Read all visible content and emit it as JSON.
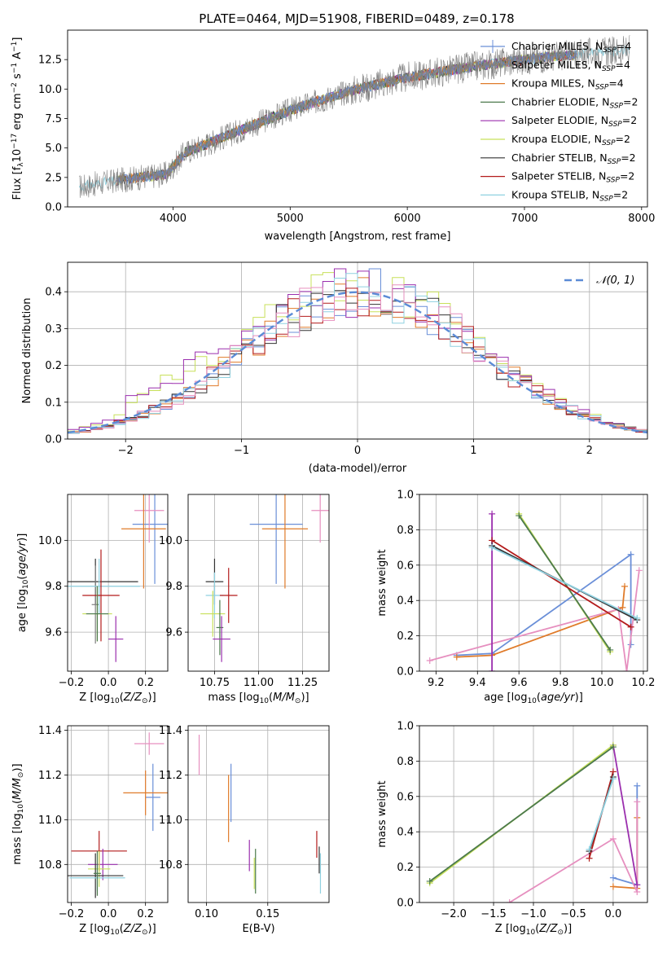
{
  "page_title": "PLATE=0464, MJD=51908, FIBERID=0489, z=0.178",
  "colors": {
    "chabrier_miles": "#6a8fd8",
    "salpeter_miles": "#7f7f7f",
    "kroupa_miles": "#e07b2a",
    "chabrier_elodie": "#4c7a4c",
    "salpeter_elodie": "#9b2fae",
    "kroupa_elodie": "#c8e05a",
    "chabrier_stelib": "#333333",
    "salpeter_stelib": "#b31b1b",
    "kroupa_stelib": "#8fd1e0",
    "pink": "#e68fbf",
    "gauss": "#5b8bd6"
  },
  "chart_data": [
    {
      "type": "line",
      "title": "PLATE=0464, MJD=51908, FIBERID=0489, z=0.178",
      "xlabel": "wavelength [Angstrom, rest frame]",
      "ylabel": "Flux [f_λ 10^-17 erg cm^-2 s^-1 A^-1]",
      "xlim": [
        3100,
        8050
      ],
      "ylim": [
        0,
        15
      ],
      "xticks": [
        "4000",
        "5000",
        "6000",
        "7000",
        "8000"
      ],
      "yticks": [
        "0.0",
        "2.5",
        "5.0",
        "7.5",
        "10.0",
        "12.5"
      ],
      "legend": [
        {
          "label": "Chabrier MILES, N",
          "sub": "SSP",
          "suffix": "=4",
          "key": "chabrier_miles"
        },
        {
          "label": "Salpeter MILES, N",
          "sub": "SSP",
          "suffix": "=4",
          "key": "salpeter_miles"
        },
        {
          "label": "Kroupa MILES, N",
          "sub": "SSP",
          "suffix": "=4",
          "key": "kroupa_miles"
        },
        {
          "label": "Chabrier ELODIE, N",
          "sub": "SSP",
          "suffix": "=2",
          "key": "chabrier_elodie"
        },
        {
          "label": "Salpeter ELODIE, N",
          "sub": "SSP",
          "suffix": "=2",
          "key": "salpeter_elodie"
        },
        {
          "label": "Kroupa ELODIE, N",
          "sub": "SSP",
          "suffix": "=2",
          "key": "kroupa_elodie"
        },
        {
          "label": "Chabrier STELIB, N",
          "sub": "SSP",
          "suffix": "=2",
          "key": "chabrier_stelib"
        },
        {
          "label": "Salpeter STELIB, N",
          "sub": "SSP",
          "suffix": "=2",
          "key": "salpeter_stelib"
        },
        {
          "label": "Kroupa STELIB, N",
          "sub": "SSP",
          "suffix": "=2",
          "key": "kroupa_stelib"
        }
      ],
      "continuum": [
        [
          3200,
          1.7
        ],
        [
          3500,
          2.2
        ],
        [
          3800,
          2.6
        ],
        [
          3950,
          2.8
        ],
        [
          4100,
          4.6
        ],
        [
          4500,
          6.2
        ],
        [
          5000,
          8.2
        ],
        [
          5500,
          9.8
        ],
        [
          6000,
          11.0
        ],
        [
          6500,
          11.8
        ],
        [
          7000,
          12.5
        ],
        [
          7500,
          13.0
        ],
        [
          7900,
          13.3
        ]
      ],
      "models_xlim": [
        3520,
        7450
      ]
    },
    {
      "type": "step",
      "xlabel": "(data-model)/error",
      "ylabel": "Normed distribution",
      "xlim": [
        -2.5,
        2.5
      ],
      "ylim": [
        0,
        0.48
      ],
      "xticks": [
        "−2",
        "−1",
        "0",
        "1",
        "2"
      ],
      "yticks": [
        "0.0",
        "0.1",
        "0.2",
        "0.3",
        "0.4"
      ],
      "legend": "𝒩(0, 1)",
      "reference_curve": "N(0,1) density"
    },
    {
      "type": "errorbar",
      "xlabel": "Z [log10(Z/Z⊙)]",
      "ylabel": "age [log10(age/yr)]",
      "xlim": [
        -0.22,
        0.32
      ],
      "ylim": [
        9.43,
        10.2
      ],
      "xticks": [
        "−0.2",
        "0.0",
        "0.2"
      ],
      "yticks": [
        "9.6",
        "9.8",
        "10.0"
      ],
      "points": [
        {
          "x": 0.25,
          "y": 10.07,
          "xerr": 0.12,
          "yerr": 0.26,
          "key": "chabrier_miles"
        },
        {
          "x": 0.22,
          "y": 10.13,
          "xerr": 0.08,
          "yerr": 0.14,
          "key": "pink"
        },
        {
          "x": 0.19,
          "y": 10.05,
          "xerr": 0.12,
          "yerr": 0.26,
          "key": "kroupa_miles"
        },
        {
          "x": -0.07,
          "y": 9.82,
          "xerr": 0.23,
          "yerr": 0.1,
          "key": "chabrier_stelib"
        },
        {
          "x": -0.07,
          "y": 9.72,
          "xerr": 0.02,
          "yerr": 0.17,
          "key": "salpeter_miles"
        },
        {
          "x": -0.05,
          "y": 9.8,
          "xerr": 0.22,
          "yerr": 0.12,
          "key": "kroupa_stelib"
        },
        {
          "x": -0.04,
          "y": 9.76,
          "xerr": 0.1,
          "yerr": 0.2,
          "key": "salpeter_stelib"
        },
        {
          "x": -0.06,
          "y": 9.68,
          "xerr": 0.08,
          "yerr": 0.12,
          "key": "kroupa_elodie"
        },
        {
          "x": -0.06,
          "y": 9.68,
          "xerr": 0.06,
          "yerr": 0.12,
          "key": "chabrier_elodie"
        },
        {
          "x": 0.04,
          "y": 9.57,
          "xerr": 0.04,
          "yerr": 0.1,
          "key": "salpeter_elodie"
        }
      ]
    },
    {
      "type": "errorbar",
      "xlabel": "mass [log10(M/M⊙)]",
      "ylabel": "",
      "xlim": [
        10.6,
        11.4
      ],
      "ylim": [
        9.43,
        10.2
      ],
      "xticks": [
        "10.75",
        "11.00",
        "11.25"
      ],
      "yticks": [
        "9.6",
        "9.8",
        "10.0"
      ],
      "points": [
        {
          "x": 11.1,
          "y": 10.07,
          "xerr": 0.15,
          "yerr": 0.26,
          "key": "chabrier_miles"
        },
        {
          "x": 11.35,
          "y": 10.13,
          "xerr": 0.05,
          "yerr": 0.14,
          "key": "pink"
        },
        {
          "x": 11.15,
          "y": 10.05,
          "xerr": 0.13,
          "yerr": 0.26,
          "key": "kroupa_miles"
        },
        {
          "x": 10.75,
          "y": 9.82,
          "xerr": 0.05,
          "yerr": 0.1,
          "key": "chabrier_stelib"
        },
        {
          "x": 10.75,
          "y": 9.76,
          "xerr": 0.05,
          "yerr": 0.1,
          "key": "kroupa_stelib"
        },
        {
          "x": 10.83,
          "y": 9.76,
          "xerr": 0.05,
          "yerr": 0.12,
          "key": "salpeter_stelib"
        },
        {
          "x": 10.74,
          "y": 9.68,
          "xerr": 0.07,
          "yerr": 0.1,
          "key": "kroupa_elodie"
        },
        {
          "x": 10.78,
          "y": 9.62,
          "xerr": 0.02,
          "yerr": 0.12,
          "key": "chabrier_elodie"
        },
        {
          "x": 10.79,
          "y": 9.57,
          "xerr": 0.05,
          "yerr": 0.1,
          "key": "salpeter_elodie"
        }
      ]
    },
    {
      "type": "line",
      "xlabel": "age [log10(age/yr)]",
      "ylabel": "mass weight",
      "xlim": [
        9.12,
        10.22
      ],
      "ylim": [
        0,
        1
      ],
      "xticks": [
        "9.2",
        "9.4",
        "9.6",
        "9.8",
        "10.0",
        "10.2"
      ],
      "yticks": [
        "0.0",
        "0.2",
        "0.4",
        "0.6",
        "0.8",
        "1.0"
      ],
      "series": [
        {
          "key": "chabrier_miles",
          "x": [
            9.3,
            9.47,
            10.14,
            10.14
          ],
          "y": [
            0.09,
            0.1,
            0.66,
            0.15
          ]
        },
        {
          "key": "kroupa_miles",
          "x": [
            9.3,
            9.47,
            10.1,
            10.11
          ],
          "y": [
            0.08,
            0.09,
            0.36,
            0.48
          ]
        },
        {
          "key": "pink",
          "x": [
            9.17,
            10.08,
            10.12,
            10.18
          ],
          "y": [
            0.06,
            0.35,
            0.0,
            0.57
          ]
        },
        {
          "key": "salpeter_elodie",
          "x": [
            9.47,
            9.47
          ],
          "y": [
            0.0,
            0.89
          ]
        },
        {
          "key": "kroupa_elodie",
          "x": [
            9.6,
            10.04
          ],
          "y": [
            0.89,
            0.11
          ]
        },
        {
          "key": "chabrier_elodie",
          "x": [
            9.6,
            10.04
          ],
          "y": [
            0.88,
            0.12
          ]
        },
        {
          "key": "salpeter_stelib",
          "x": [
            9.47,
            10.14
          ],
          "y": [
            0.74,
            0.25
          ]
        },
        {
          "key": "chabrier_stelib",
          "x": [
            9.47,
            10.17
          ],
          "y": [
            0.71,
            0.29
          ]
        },
        {
          "key": "kroupa_stelib",
          "x": [
            9.47,
            10.17
          ],
          "y": [
            0.7,
            0.3
          ]
        }
      ]
    },
    {
      "type": "errorbar",
      "xlabel": "Z [log10(Z/Z⊙)]",
      "ylabel": "mass [log10(M/M⊙)]",
      "xlim": [
        -0.22,
        0.32
      ],
      "ylim": [
        10.63,
        11.42
      ],
      "xticks": [
        "−0.2",
        "0.0",
        "0.2"
      ],
      "yticks": [
        "10.8",
        "11.0",
        "11.2",
        "11.4"
      ],
      "points": [
        {
          "x": 0.24,
          "y": 11.1,
          "xerr": 0.04,
          "yerr": 0.15,
          "key": "chabrier_miles"
        },
        {
          "x": 0.22,
          "y": 11.34,
          "xerr": 0.08,
          "yerr": 0.05,
          "key": "pink"
        },
        {
          "x": 0.2,
          "y": 11.12,
          "xerr": 0.12,
          "yerr": 0.1,
          "key": "kroupa_miles"
        },
        {
          "x": -0.05,
          "y": 10.86,
          "xerr": 0.15,
          "yerr": 0.09,
          "key": "salpeter_stelib"
        },
        {
          "x": -0.03,
          "y": 10.8,
          "xerr": 0.08,
          "yerr": 0.07,
          "key": "salpeter_elodie"
        },
        {
          "x": -0.05,
          "y": 10.78,
          "xerr": 0.06,
          "yerr": 0.08,
          "key": "kroupa_elodie"
        },
        {
          "x": -0.07,
          "y": 10.75,
          "xerr": 0.15,
          "yerr": 0.1,
          "key": "chabrier_stelib"
        },
        {
          "x": -0.06,
          "y": 10.74,
          "xerr": 0.15,
          "yerr": 0.06,
          "key": "kroupa_stelib"
        },
        {
          "x": -0.06,
          "y": 10.76,
          "xerr": 0.02,
          "yerr": 0.1,
          "key": "chabrier_elodie"
        }
      ]
    },
    {
      "type": "errorbar",
      "xlabel": "E(B-V)",
      "ylabel": "",
      "xlim": [
        0.085,
        0.2
      ],
      "ylim": [
        10.63,
        11.42
      ],
      "xticks": [
        "0.10",
        "0.15"
      ],
      "yticks": [
        "10.8",
        "11.0",
        "11.2",
        "11.4"
      ],
      "points": [
        {
          "x": 0.094,
          "y": 11.29,
          "xerr": 0,
          "yerr": 0.09,
          "key": "pink"
        },
        {
          "x": 0.12,
          "y": 11.12,
          "xerr": 0,
          "yerr": 0.13,
          "key": "chabrier_miles"
        },
        {
          "x": 0.118,
          "y": 11.05,
          "xerr": 0,
          "yerr": 0.15,
          "key": "kroupa_miles"
        },
        {
          "x": 0.135,
          "y": 10.84,
          "xerr": 0,
          "yerr": 0.07,
          "key": "salpeter_elodie"
        },
        {
          "x": 0.14,
          "y": 10.77,
          "xerr": 0,
          "yerr": 0.1,
          "key": "chabrier_elodie"
        },
        {
          "x": 0.139,
          "y": 10.76,
          "xerr": 0,
          "yerr": 0.07,
          "key": "kroupa_elodie"
        },
        {
          "x": 0.19,
          "y": 10.89,
          "xerr": 0,
          "yerr": 0.06,
          "key": "salpeter_stelib"
        },
        {
          "x": 0.193,
          "y": 10.76,
          "xerr": 0,
          "yerr": 0.09,
          "key": "kroupa_stelib"
        },
        {
          "x": 0.192,
          "y": 10.82,
          "xerr": 0,
          "yerr": 0.06,
          "key": "chabrier_stelib"
        }
      ]
    },
    {
      "type": "line",
      "xlabel": "Z [log10(Z/Z⊙)]",
      "ylabel": "mass weight",
      "xlim": [
        -2.43,
        0.43
      ],
      "ylim": [
        0,
        1
      ],
      "xticks": [
        "−2.0",
        "−1.5",
        "−1.0",
        "−0.5",
        "0.0"
      ],
      "yticks": [
        "0.0",
        "0.2",
        "0.4",
        "0.6",
        "0.8",
        "1.0"
      ],
      "series": [
        {
          "key": "chabrier_miles",
          "x": [
            0.0,
            0.3,
            0.3
          ],
          "y": [
            0.14,
            0.1,
            0.66
          ]
        },
        {
          "key": "kroupa_miles",
          "x": [
            0.0,
            0.3,
            0.3
          ],
          "y": [
            0.09,
            0.08,
            0.48
          ]
        },
        {
          "key": "pink",
          "x": [
            -1.3,
            0.0,
            0.3,
            0.3
          ],
          "y": [
            0.0,
            0.36,
            0.06,
            0.57
          ]
        },
        {
          "key": "salpeter_elodie",
          "x": [
            0.0,
            0.3
          ],
          "y": [
            0.89,
            0.1
          ]
        },
        {
          "key": "kroupa_elodie",
          "x": [
            -2.3,
            0.0
          ],
          "y": [
            0.11,
            0.89
          ]
        },
        {
          "key": "chabrier_elodie",
          "x": [
            -2.3,
            0.0
          ],
          "y": [
            0.12,
            0.88
          ]
        },
        {
          "key": "salpeter_stelib",
          "x": [
            -0.3,
            0.0
          ],
          "y": [
            0.25,
            0.74
          ]
        },
        {
          "key": "chabrier_stelib",
          "x": [
            -0.3,
            0.0
          ],
          "y": [
            0.29,
            0.71
          ]
        },
        {
          "key": "kroupa_stelib",
          "x": [
            -0.3,
            0.0
          ],
          "y": [
            0.3,
            0.7
          ]
        }
      ]
    }
  ]
}
